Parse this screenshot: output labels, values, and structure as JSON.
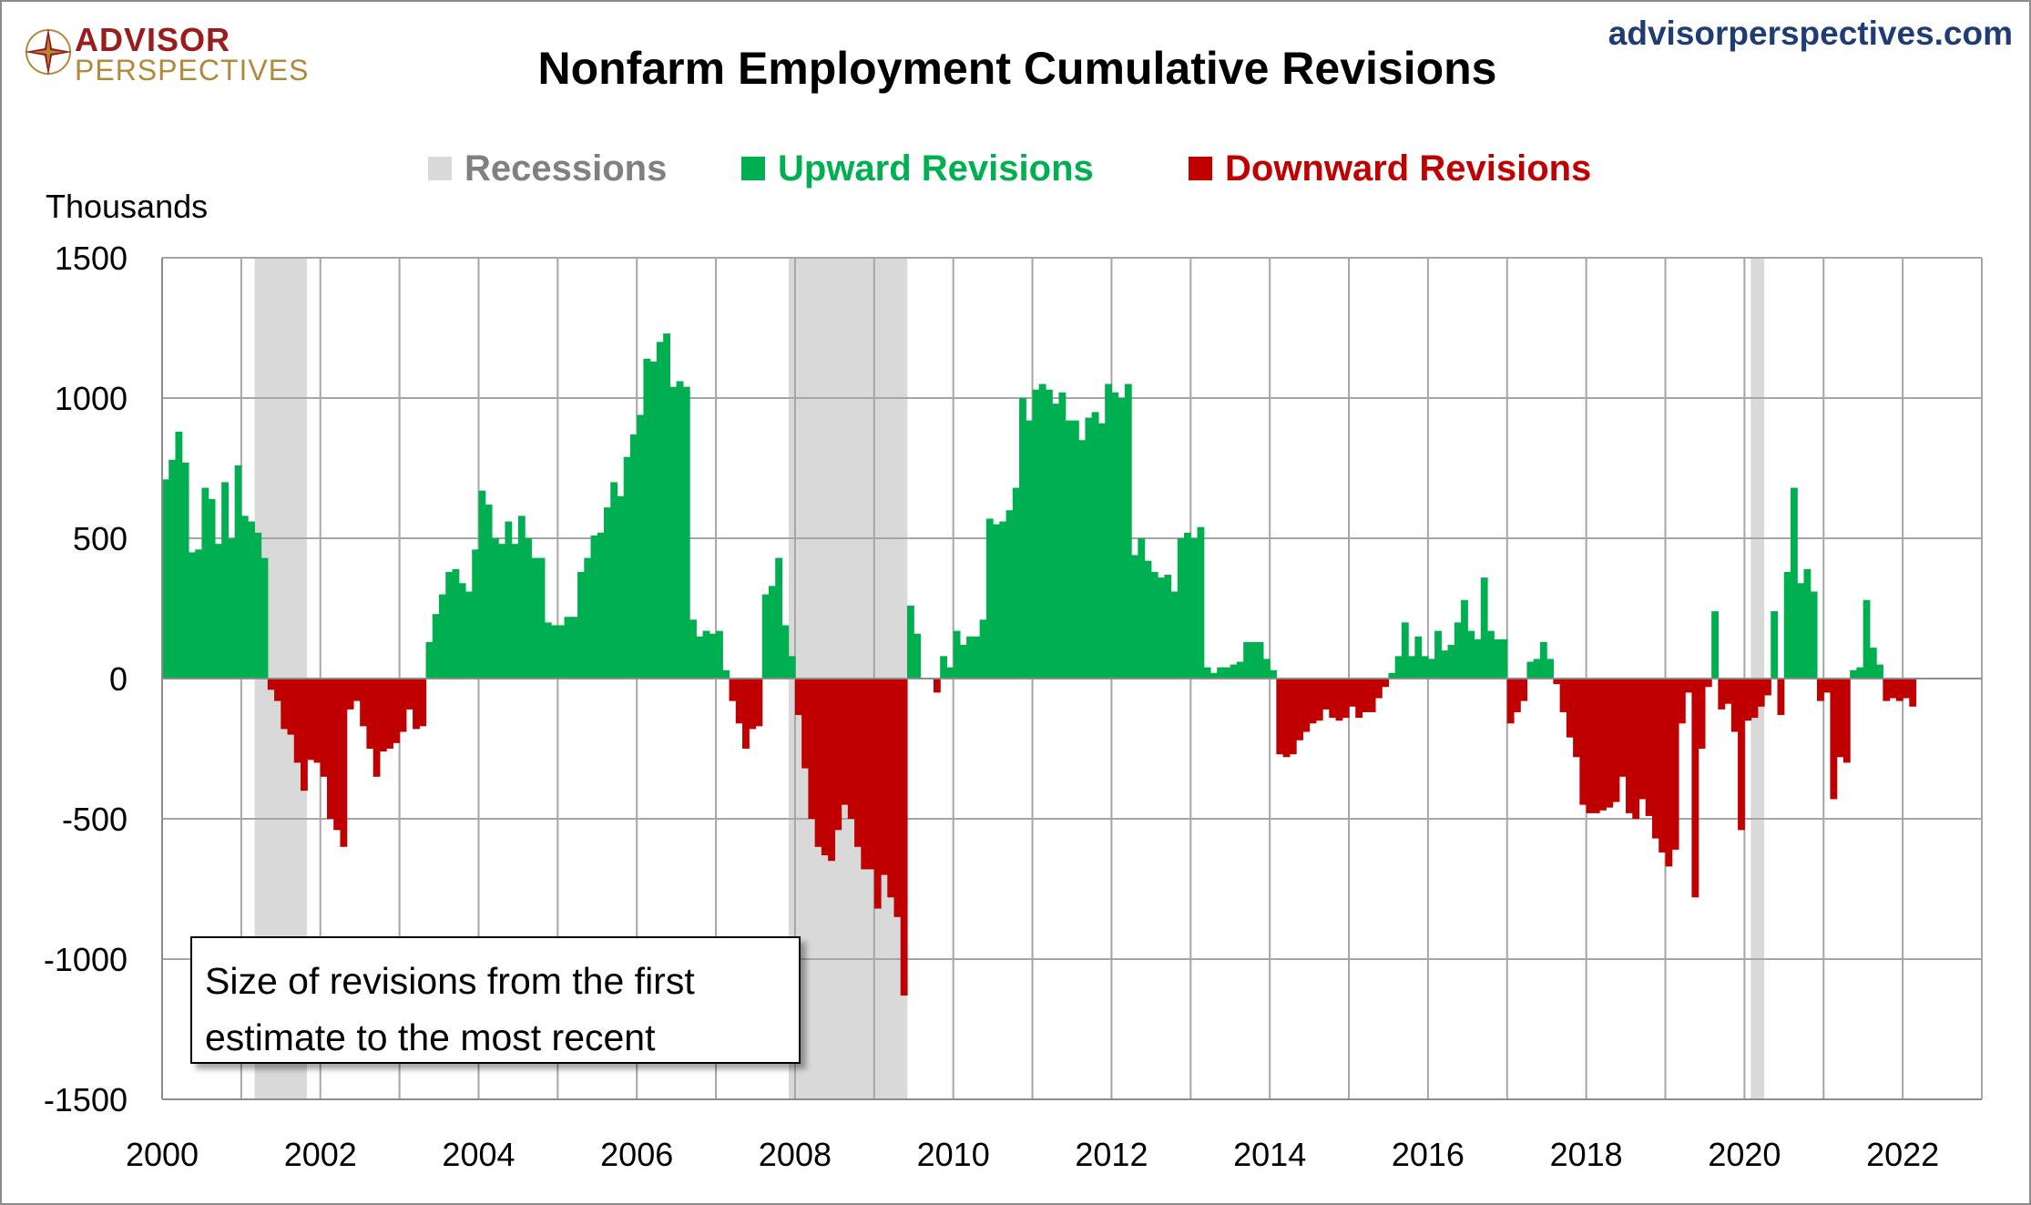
{
  "header": {
    "logo_line1": "ADVISOR",
    "logo_line2": "PERSPECTIVES",
    "site": "advisorperspectives.com",
    "title": "Nonfarm Employment Cumulative Revisions"
  },
  "note": {
    "line1": "Size of revisions from the first",
    "line2": "estimate to the most recent"
  },
  "chart_data": {
    "type": "bar",
    "title": "Nonfarm Employment Cumulative Revisions",
    "ylabel": "Thousands",
    "ylim": [
      -1500,
      1500
    ],
    "yticks": [
      1500,
      1000,
      500,
      0,
      -500,
      -1000,
      -1500
    ],
    "xlim": [
      2000,
      2023
    ],
    "xticks": [
      2000,
      2002,
      2004,
      2006,
      2008,
      2010,
      2012,
      2014,
      2016,
      2018,
      2020,
      2022
    ],
    "grid": true,
    "legend_position": "top",
    "legend": [
      {
        "key": "recessions",
        "label": "Recessions",
        "color": "#d9d9d9",
        "text_color": "#808080"
      },
      {
        "key": "up",
        "label": "Upward Revisions",
        "color": "#00b050",
        "text_color": "#00b050"
      },
      {
        "key": "down",
        "label": "Downward Revisions",
        "color": "#c00000",
        "text_color": "#c00000"
      }
    ],
    "recessions": [
      [
        2001.17,
        2001.83
      ],
      [
        2007.92,
        2009.42
      ],
      [
        2020.08,
        2020.25
      ]
    ],
    "start": 2000.0,
    "step": 0.08333,
    "values": [
      710,
      780,
      880,
      770,
      450,
      460,
      680,
      640,
      480,
      700,
      500,
      760,
      580,
      560,
      520,
      430,
      -40,
      -80,
      -180,
      -200,
      -300,
      -400,
      -290,
      -300,
      -350,
      -500,
      -540,
      -600,
      -110,
      -80,
      -170,
      -250,
      -350,
      -260,
      -250,
      -230,
      -190,
      -110,
      -180,
      -170,
      130,
      230,
      300,
      380,
      390,
      340,
      310,
      460,
      670,
      620,
      500,
      480,
      560,
      480,
      580,
      500,
      430,
      430,
      200,
      190,
      190,
      220,
      220,
      380,
      430,
      510,
      520,
      610,
      700,
      650,
      790,
      870,
      940,
      1140,
      1130,
      1200,
      1230,
      1040,
      1060,
      1040,
      210,
      150,
      170,
      160,
      170,
      30,
      -80,
      -160,
      -250,
      -180,
      -170,
      300,
      330,
      430,
      190,
      80,
      -130,
      -320,
      -500,
      -600,
      -630,
      -650,
      -540,
      -450,
      -500,
      -600,
      -680,
      -680,
      -820,
      -700,
      -780,
      -850,
      -1130,
      260,
      160,
      0,
      0,
      -50,
      80,
      40,
      170,
      120,
      150,
      150,
      210,
      570,
      550,
      560,
      600,
      680,
      1000,
      920,
      1030,
      1050,
      1030,
      980,
      1020,
      920,
      920,
      850,
      930,
      950,
      910,
      1050,
      1020,
      1000,
      1050,
      440,
      500,
      420,
      380,
      360,
      370,
      310,
      500,
      520,
      500,
      540,
      40,
      20,
      40,
      40,
      50,
      60,
      130,
      130,
      130,
      70,
      30,
      -270,
      -280,
      -270,
      -220,
      -190,
      -160,
      -150,
      -110,
      -140,
      -150,
      -140,
      -100,
      -140,
      -120,
      -120,
      -70,
      -30,
      20,
      80,
      200,
      80,
      150,
      80,
      70,
      170,
      100,
      120,
      200,
      280,
      170,
      140,
      360,
      170,
      140,
      140,
      -160,
      -120,
      -80,
      60,
      70,
      130,
      70,
      -20,
      -120,
      -210,
      -280,
      -450,
      -480,
      -480,
      -470,
      -460,
      -440,
      -350,
      -480,
      -500,
      -430,
      -490,
      -570,
      -620,
      -670,
      -610,
      -160,
      -50,
      -780,
      -250,
      -30,
      240,
      -110,
      -90,
      -190,
      -540,
      -150,
      -140,
      -100,
      -60,
      240,
      -130,
      380,
      680,
      340,
      390,
      310,
      -80,
      -50,
      -430,
      -280,
      -300,
      30,
      40,
      280,
      110,
      50,
      -80,
      -70,
      -80,
      -70,
      -100
    ]
  }
}
